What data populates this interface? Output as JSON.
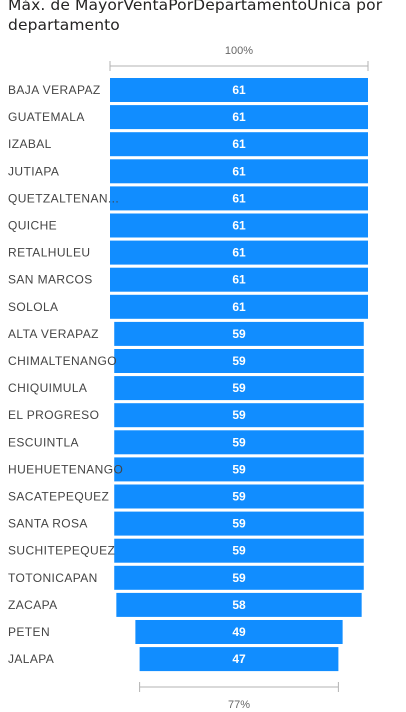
{
  "title": "Máx. de MayorVentaPorDepartamentoUnica por departamento",
  "chart_data": {
    "type": "funnel",
    "categories": [
      "BAJA VERAPAZ",
      "GUATEMALA",
      "IZABAL",
      "JUTIAPA",
      "QUETZALTENAN...",
      "QUICHE",
      "RETALHULEU",
      "SAN MARCOS",
      "SOLOLA",
      "ALTA VERAPAZ",
      "CHIMALTENANGO",
      "CHIQUIMULA",
      "EL PROGRESO",
      "ESCUINTLA",
      "HUEHUETENANGO",
      "SACATEPEQUEZ",
      "SANTA ROSA",
      "SUCHITEPEQUEZ",
      "TOTONICAPAN",
      "ZACAPA",
      "PETEN",
      "JALAPA"
    ],
    "values": [
      61,
      61,
      61,
      61,
      61,
      61,
      61,
      61,
      61,
      59,
      59,
      59,
      59,
      59,
      59,
      59,
      59,
      59,
      59,
      58,
      49,
      47
    ],
    "top_label": "100%",
    "bottom_label": "77%"
  },
  "colors": {
    "bar": "#118dff",
    "value_text": "#ffffff",
    "category_text": "#444444",
    "axis": "#b3b3b3"
  }
}
